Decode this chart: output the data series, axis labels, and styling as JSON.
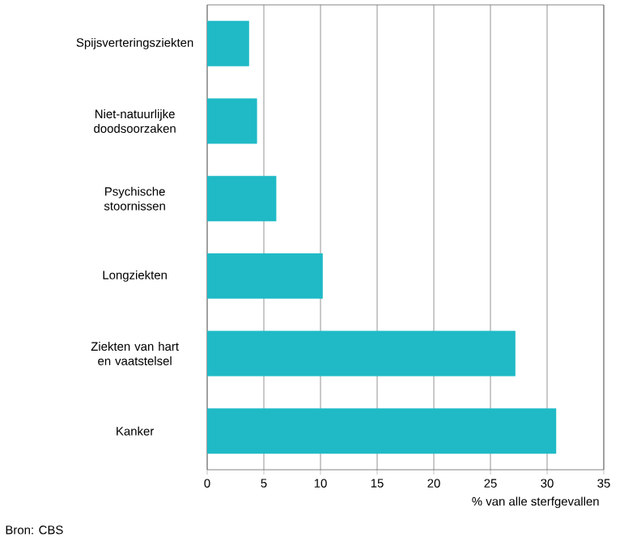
{
  "chart_data": {
    "type": "bar",
    "orientation": "horizontal",
    "categories": [
      "Spijsverteringsziekten",
      "Niet-natuurlijke doodsoorzaken",
      "Psychische stoornissen",
      "Longziekten",
      "Ziekten van hart en vaatstelsel",
      "Kanker"
    ],
    "values": [
      3.7,
      4.4,
      6.1,
      10.2,
      27.2,
      30.8
    ],
    "color": "#1fbac6",
    "xlim": [
      0,
      35
    ],
    "xticks": [
      0,
      5,
      10,
      15,
      20,
      25,
      30,
      35
    ],
    "xlabel": "% van alle sterfgevallen",
    "grid": "x",
    "annotations": [
      "Bron: CBS"
    ]
  }
}
